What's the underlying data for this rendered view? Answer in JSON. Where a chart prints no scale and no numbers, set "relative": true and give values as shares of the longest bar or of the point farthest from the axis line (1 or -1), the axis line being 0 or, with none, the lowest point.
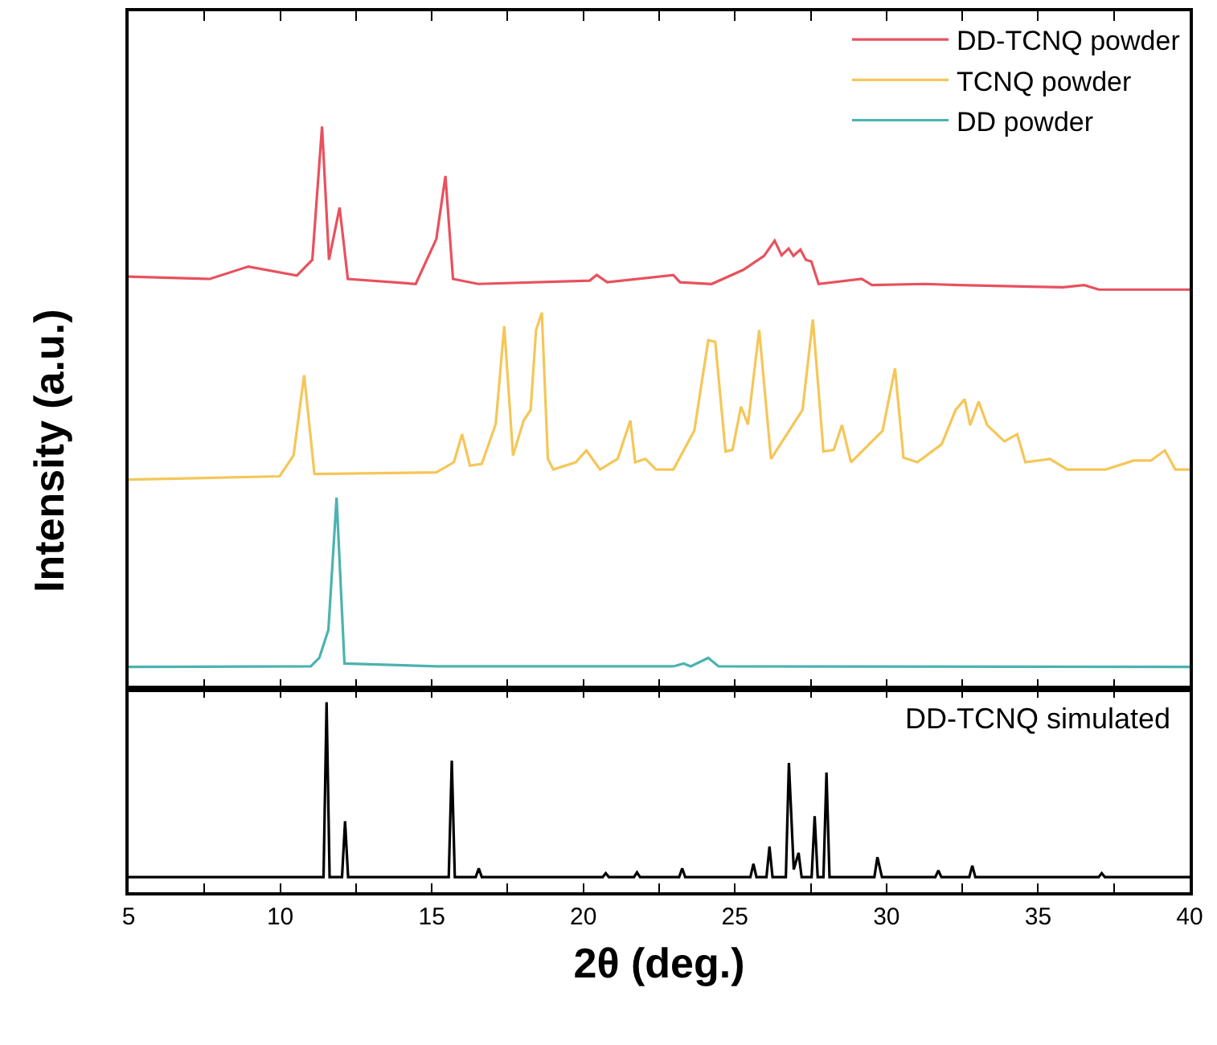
{
  "chart_data": [
    {
      "type": "line",
      "relative": true,
      "ylabel": "Intensity (a.u.)",
      "legend": "top right",
      "tick_labels": false,
      "line_style": "solid",
      "xlim": [
        5,
        40
      ],
      "xticks": [
        {
          "value": 5,
          "label": null
        },
        {
          "value": 7.5,
          "label": null
        },
        {
          "value": 10,
          "label": null
        },
        {
          "value": 12.5,
          "label": null
        },
        {
          "value": 15,
          "label": null
        },
        {
          "value": 17.5,
          "label": null
        },
        {
          "value": 20,
          "label": null
        },
        {
          "value": 22.5,
          "label": null
        },
        {
          "value": 25,
          "label": null
        },
        {
          "value": 27.5,
          "label": null
        },
        {
          "value": 30,
          "label": null
        },
        {
          "value": 32.5,
          "label": null
        },
        {
          "value": 35,
          "label": null
        },
        {
          "value": 37.5,
          "label": null
        },
        {
          "value": 40,
          "label": null
        }
      ],
      "series": [
        {
          "name": "DD-TCNQ powder",
          "color": "#e8515d",
          "x": [
            5.0,
            7.68,
            8.95,
            10.55,
            11.06,
            11.38,
            11.61,
            11.96,
            12.23,
            14.47,
            15.15,
            15.45,
            15.7,
            16.53,
            20.21,
            20.44,
            20.79,
            22.97,
            23.19,
            24.23,
            25.27,
            25.96,
            26.31,
            26.54,
            26.77,
            26.93,
            27.16,
            27.34,
            27.52,
            27.76,
            29.18,
            29.52,
            31.25,
            32.39,
            35.83,
            36.52,
            37.0,
            40.0
          ],
          "values": [
            0.733,
            0.729,
            0.751,
            0.735,
            0.763,
            1.0,
            0.763,
            0.856,
            0.729,
            0.72,
            0.8,
            0.912,
            0.729,
            0.72,
            0.726,
            0.736,
            0.723,
            0.736,
            0.723,
            0.72,
            0.745,
            0.77,
            0.797,
            0.771,
            0.783,
            0.77,
            0.781,
            0.763,
            0.76,
            0.72,
            0.729,
            0.718,
            0.72,
            0.718,
            0.714,
            0.718,
            0.71,
            0.71
          ]
        },
        {
          "name": "TCNQ powder",
          "color": "#f5c658",
          "x": [
            5.0,
            9.98,
            10.44,
            10.79,
            11.13,
            15.15,
            15.73,
            16.0,
            16.26,
            16.65,
            17.11,
            17.39,
            17.68,
            18.03,
            18.26,
            18.44,
            18.63,
            18.83,
            19.01,
            19.75,
            20.1,
            20.55,
            21.13,
            21.55,
            21.71,
            22.05,
            22.4,
            22.97,
            23.66,
            24.12,
            24.35,
            24.69,
            24.92,
            25.2,
            25.43,
            25.8,
            26.19,
            27.23,
            27.57,
            27.92,
            28.26,
            28.53,
            28.83,
            29.87,
            30.28,
            30.56,
            31.02,
            31.82,
            32.28,
            32.58,
            32.76,
            33.04,
            33.32,
            33.89,
            34.31,
            34.58,
            35.39,
            35.96,
            37.23,
            38.15,
            38.72,
            39.18,
            39.53,
            40.0
          ],
          "values": [
            0.372,
            0.378,
            0.415,
            0.558,
            0.382,
            0.385,
            0.403,
            0.453,
            0.397,
            0.4,
            0.471,
            0.645,
            0.415,
            0.477,
            0.496,
            0.638,
            0.669,
            0.409,
            0.39,
            0.403,
            0.424,
            0.39,
            0.409,
            0.477,
            0.403,
            0.409,
            0.39,
            0.39,
            0.459,
            0.62,
            0.617,
            0.422,
            0.425,
            0.502,
            0.47,
            0.638,
            0.409,
            0.496,
            0.657,
            0.422,
            0.425,
            0.469,
            0.403,
            0.459,
            0.57,
            0.411,
            0.403,
            0.435,
            0.496,
            0.515,
            0.469,
            0.511,
            0.469,
            0.44,
            0.453,
            0.403,
            0.409,
            0.39,
            0.39,
            0.406,
            0.406,
            0.424,
            0.39,
            0.39
          ]
        },
        {
          "name": "DD powder",
          "color": "#4bb3b0",
          "x": [
            5.0,
            11.01,
            11.29,
            11.59,
            11.86,
            12.12,
            15.15,
            22.97,
            23.31,
            23.54,
            24.12,
            24.46,
            40.0
          ],
          "values": [
            0.039,
            0.04,
            0.055,
            0.105,
            0.34,
            0.045,
            0.04,
            0.04,
            0.045,
            0.04,
            0.055,
            0.04,
            0.039
          ]
        }
      ]
    },
    {
      "type": "line",
      "relative": true,
      "xlabel": "2θ (deg.)",
      "tick_labels": "x",
      "line_style": "solid",
      "annotations": [
        "DD-TCNQ simulated"
      ],
      "xlim": [
        5,
        40
      ],
      "xticks": [
        5,
        {
          "value": 7.5,
          "label": null
        },
        10,
        {
          "value": 12.5,
          "label": null
        },
        15,
        {
          "value": 17.5,
          "label": null
        },
        20,
        {
          "value": 22.5,
          "label": null
        },
        25,
        {
          "value": 27.5,
          "label": null
        },
        30,
        {
          "value": 32.5,
          "label": null
        },
        35,
        {
          "value": 37.5,
          "label": null
        },
        40
      ],
      "series": [
        {
          "color": "#000000",
          "x": [
            5.0,
            11.43,
            11.53,
            11.63,
            12.04,
            12.14,
            12.24,
            15.56,
            15.66,
            15.76,
            16.45,
            16.55,
            16.65,
            20.64,
            20.74,
            20.84,
            21.67,
            21.77,
            21.87,
            23.16,
            23.26,
            23.36,
            25.51,
            25.61,
            25.71,
            26.04,
            26.14,
            26.24,
            26.68,
            26.78,
            26.94,
            27.1,
            27.2,
            27.53,
            27.63,
            27.73,
            27.92,
            28.02,
            28.12,
            29.6,
            29.7,
            29.85,
            31.61,
            31.71,
            31.81,
            32.73,
            32.83,
            32.93,
            37.0,
            37.1,
            37.2,
            40.0
          ],
          "values": [
            0.08,
            0.08,
            1.0,
            0.08,
            0.08,
            0.374,
            0.08,
            0.08,
            0.692,
            0.08,
            0.08,
            0.126,
            0.08,
            0.08,
            0.1,
            0.08,
            0.08,
            0.105,
            0.08,
            0.08,
            0.126,
            0.08,
            0.08,
            0.15,
            0.08,
            0.08,
            0.24,
            0.08,
            0.08,
            0.68,
            0.12,
            0.207,
            0.08,
            0.08,
            0.4,
            0.08,
            0.08,
            0.63,
            0.08,
            0.08,
            0.185,
            0.08,
            0.08,
            0.115,
            0.08,
            0.08,
            0.14,
            0.08,
            0.08,
            0.1,
            0.08,
            0.08
          ]
        }
      ]
    }
  ]
}
